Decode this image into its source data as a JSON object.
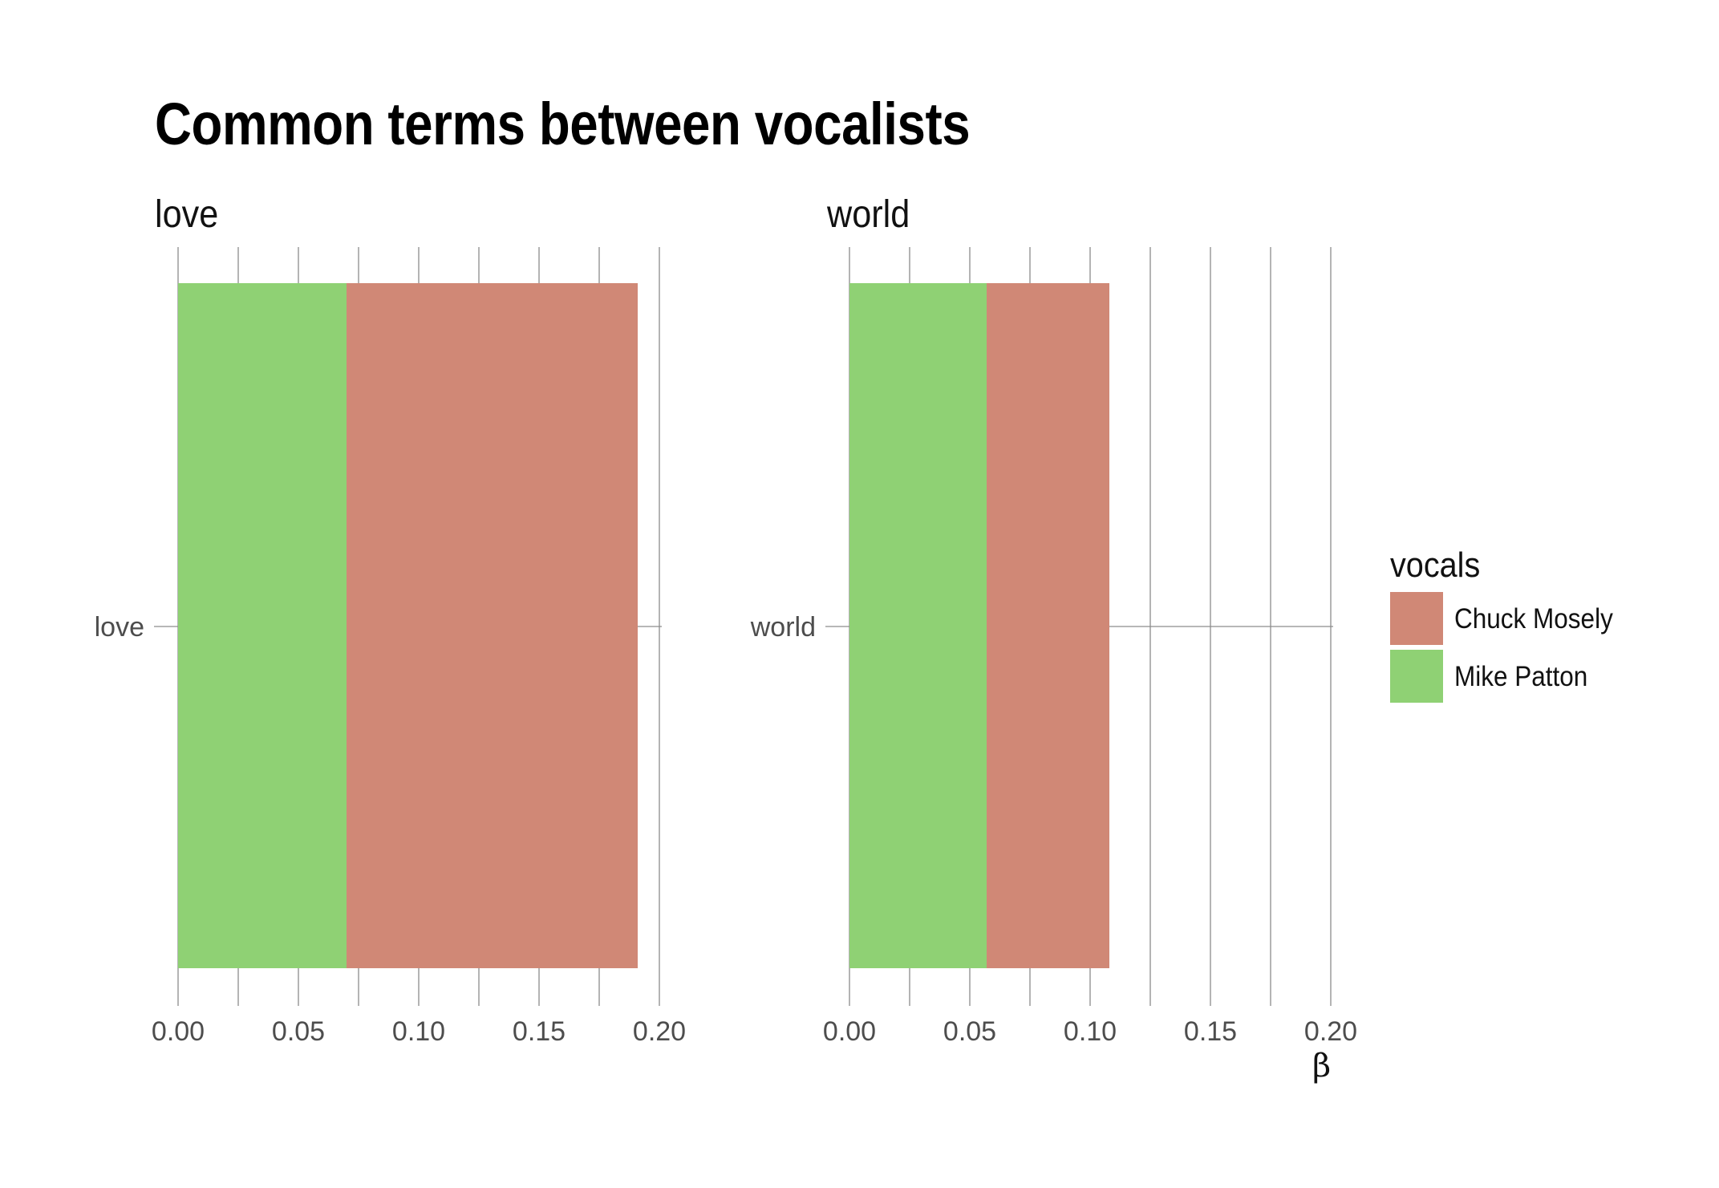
{
  "chart_data": {
    "type": "bar",
    "title": "Common terms between vocalists",
    "xlabel": "β",
    "ylabel": "",
    "xlim": [
      0,
      0.2
    ],
    "x_ticks": [
      "0.00",
      "0.05",
      "0.10",
      "0.15",
      "0.20"
    ],
    "orientation": "horizontal",
    "stacked": true,
    "grid": true,
    "legend": {
      "title": "vocals",
      "position": "right",
      "entries": [
        {
          "name": "Chuck Mosely",
          "color": "#d08876"
        },
        {
          "name": "Mike Patton",
          "color": "#8fd174"
        }
      ]
    },
    "facets": [
      {
        "title": "love",
        "categories": [
          "love"
        ],
        "series": [
          {
            "name": "Mike Patton",
            "values": [
              0.07
            ]
          },
          {
            "name": "Chuck Mosely",
            "values": [
              0.121
            ]
          }
        ]
      },
      {
        "title": "world",
        "categories": [
          "world"
        ],
        "series": [
          {
            "name": "Mike Patton",
            "values": [
              0.057
            ]
          },
          {
            "name": "Chuck Mosely",
            "values": [
              0.051
            ]
          }
        ]
      }
    ],
    "colors": {
      "Mike Patton": "#8fd174",
      "Chuck Mosely": "#d08876",
      "grid": "#8c8c8c",
      "tick_text": "#4d4d4d"
    }
  }
}
